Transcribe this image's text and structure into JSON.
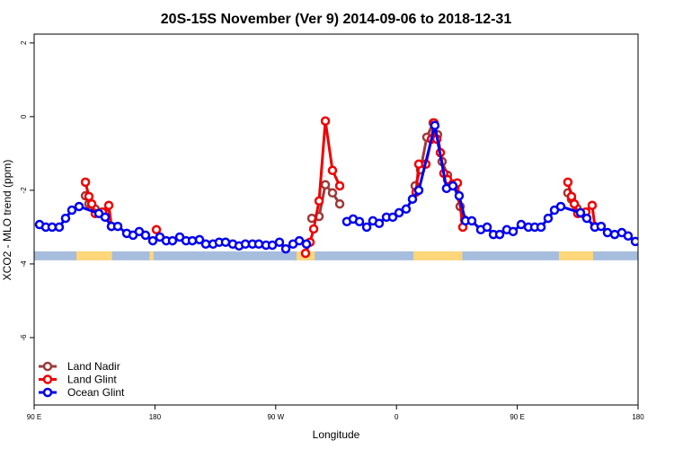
{
  "chart_data": {
    "type": "line",
    "title": "20S-15S November (Ver 9)   2014-09-06 to 2018-12-31",
    "xlabel": "Longitude",
    "ylabel": "XCO2 - MLO trend (ppm)",
    "xlim": [
      90,
      540
    ],
    "ylim": [
      -7.83,
      2.24
    ],
    "xticks": [
      {
        "value": 90,
        "label": "90 E"
      },
      180,
      {
        "value": 270,
        "label": "90 W"
      },
      {
        "value": 360,
        "label": "0"
      },
      {
        "value": 450,
        "label": "90 E"
      },
      {
        "value": 540,
        "label": "180"
      }
    ],
    "yticks": [
      2,
      0,
      -2,
      -4,
      -6
    ],
    "grid": false,
    "legend": "bottom-left",
    "band": {
      "value": -3.78,
      "ocean_color": "#a7bddd",
      "land_color": "#ffd77a",
      "land_ranges": [
        [
          121.5,
          148
        ],
        [
          176,
          179
        ],
        [
          285.5,
          299
        ],
        [
          372.6,
          409
        ],
        [
          481,
          506.5
        ]
      ]
    },
    "series": [
      {
        "name": "Land Nadir",
        "color": "#9e3a3a",
        "x": [
          128.2,
          130.8,
          135.5,
          142.9,
          200,
          296.9,
          302.3,
          307.0,
          312.3,
          317.7,
          345,
          373.9,
          377.9,
          382.6,
          387.3,
          390.6,
          394.0,
          398.0,
          402.7,
          407.4,
          410.7,
          450,
          487.7,
          490.4,
          494.5,
          498.5
        ],
        "values": [
          -2.15,
          -2.37,
          -2.51,
          -2.61,
          null,
          -2.76,
          -2.71,
          -1.85,
          -2.07,
          -2.37,
          null,
          -1.88,
          -1.44,
          -0.56,
          -0.17,
          -0.49,
          -1.22,
          -1.59,
          -1.83,
          -2.44,
          -2.8,
          null,
          -2.07,
          -2.24,
          -2.49,
          -2.63
        ]
      },
      {
        "name": "Land Glint",
        "color": "#f00000",
        "x": [
          128.2,
          130.8,
          132.9,
          135.5,
          140.9,
          145.6,
          147.6,
          160,
          181.1,
          250,
          292.2,
          295.6,
          298.3,
          302.3,
          307.0,
          312.3,
          317.7,
          350,
          374.6,
          376.6,
          381.9,
          386.0,
          388.0,
          390.0,
          392.7,
          395.3,
          398.0,
          402.0,
          405.4,
          409.4,
          440,
          487.7,
          490.4,
          492.5,
          495.1,
          501.1,
          505.8,
          507.8
        ],
        "values": [
          -1.78,
          -2.17,
          -2.37,
          -2.63,
          -2.59,
          -2.41,
          -2.98,
          null,
          -3.07,
          null,
          -3.71,
          -3.41,
          -3.05,
          -2.29,
          -0.12,
          -1.46,
          -1.88,
          null,
          -2.05,
          -1.29,
          -1.29,
          -0.61,
          -0.17,
          -0.61,
          -0.98,
          -1.54,
          -1.71,
          -1.83,
          -1.8,
          -3.0,
          null,
          -1.78,
          -2.17,
          -2.37,
          -2.63,
          -2.59,
          -2.41,
          -2.98
        ]
      },
      {
        "name": "Ocean Glint",
        "color": "#0000ee",
        "x": [
          94.0,
          98.7,
          103.4,
          108.7,
          113.4,
          118.1,
          123.5,
          138.2,
          142.9,
          147.6,
          152.3,
          159.0,
          163.7,
          168.3,
          173.0,
          178.4,
          183.7,
          188.4,
          193.1,
          198.5,
          203.2,
          207.9,
          213.2,
          217.9,
          223.3,
          227.9,
          232.6,
          238.0,
          242.7,
          247.4,
          252.7,
          257.4,
          262.8,
          267.5,
          272.8,
          277.5,
          282.9,
          287.6,
          292.9,
          310,
          323.0,
          327.7,
          332.4,
          337.8,
          342.4,
          347.1,
          352.5,
          357.2,
          361.9,
          367.2,
          371.9,
          376.6,
          388.6,
          397.3,
          402.0,
          406.7,
          411.4,
          416.1,
          422.8,
          427.5,
          432.2,
          436.9,
          442.2,
          446.9,
          452.9,
          458.3,
          463.0,
          467.7,
          473.0,
          477.7,
          482.4,
          497.1,
          501.8,
          507.8,
          512.5,
          517.2,
          522.6,
          527.9,
          532.6,
          538.0
        ],
        "values": [
          -2.93,
          -3.0,
          -3.0,
          -3.0,
          -2.76,
          -2.54,
          -2.44,
          -2.63,
          -2.73,
          -2.98,
          -2.98,
          -3.17,
          -3.22,
          -3.12,
          -3.22,
          -3.37,
          -3.27,
          -3.37,
          -3.37,
          -3.27,
          -3.37,
          -3.37,
          -3.34,
          -3.46,
          -3.46,
          -3.41,
          -3.41,
          -3.46,
          -3.51,
          -3.46,
          -3.46,
          -3.46,
          -3.49,
          -3.49,
          -3.41,
          -3.59,
          -3.46,
          -3.37,
          -3.46,
          null,
          -2.85,
          -2.78,
          -2.85,
          -3.0,
          -2.83,
          -2.9,
          -2.73,
          -2.73,
          -2.61,
          -2.51,
          -2.24,
          -2.0,
          -0.24,
          -1.95,
          -1.88,
          -2.15,
          -2.83,
          -2.83,
          -3.07,
          -3.0,
          -3.2,
          -3.2,
          -3.07,
          -3.12,
          -2.93,
          -3.0,
          -3.0,
          -3.0,
          -2.76,
          -2.54,
          -2.44,
          -2.61,
          -2.76,
          -3.0,
          -2.98,
          -3.15,
          -3.2,
          -3.15,
          -3.24,
          -3.39
        ]
      }
    ]
  }
}
